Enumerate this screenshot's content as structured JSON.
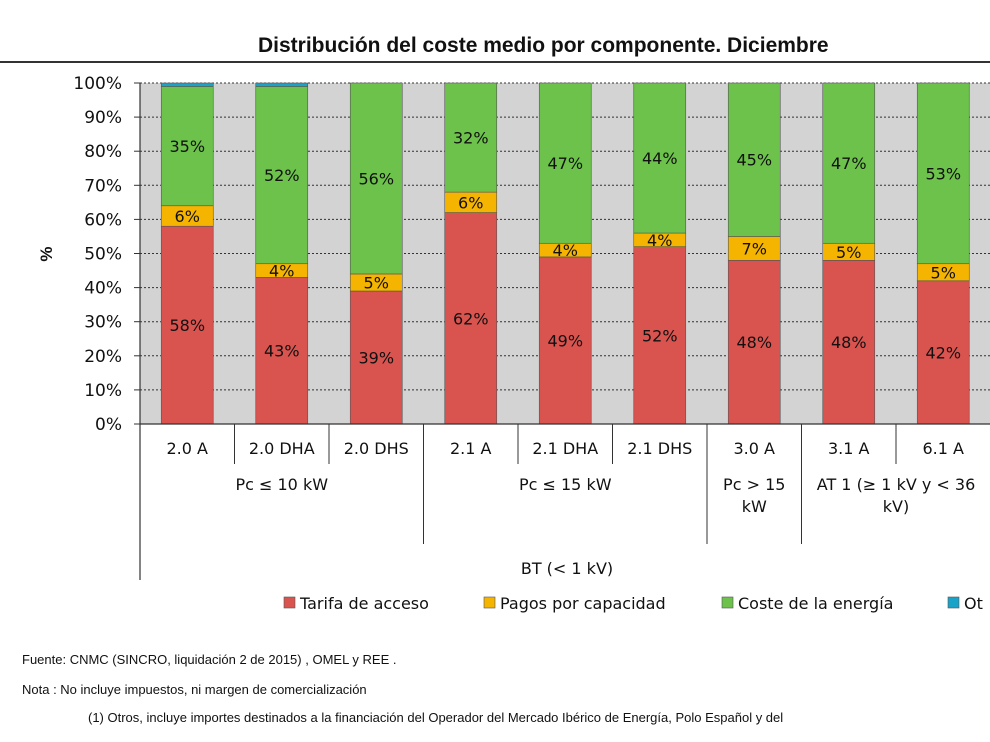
{
  "chart_data": {
    "type": "bar",
    "stacked": true,
    "title": "Distribución del coste medio por componente. Diciembre",
    "ylabel": "%",
    "ylim": [
      0,
      100
    ],
    "yticks": [
      "0%",
      "10%",
      "20%",
      "30%",
      "40%",
      "50%",
      "60%",
      "70%",
      "80%",
      "90%",
      "100%"
    ],
    "categories": [
      "2.0 A",
      "2.0 DHA",
      "2.0 DHS",
      "2.1 A",
      "2.1 DHA",
      "2.1 DHS",
      "3.0 A",
      "3.1 A",
      "6.1 A"
    ],
    "groups": [
      {
        "label": "Pc ≤ 10 kW",
        "lines": [
          "Pc ≤ 10 kW"
        ]
      },
      {
        "label": "Pc ≤ 15 kW",
        "lines": [
          "Pc ≤ 15 kW"
        ]
      },
      {
        "label": "Pc > 15 kW",
        "lines": [
          "Pc > 15",
          "kW"
        ]
      },
      {
        "label": "AT 1 (≥ 1 kV y < 36 kV)",
        "lines": [
          "AT 1 (≥  1 kV y  < 36",
          "kV)"
        ]
      }
    ],
    "supergroup": "BT (< 1 kV)",
    "series": [
      {
        "name": "Tarifa de acceso",
        "color": "#d9534f",
        "values": [
          58,
          43,
          39,
          62,
          49,
          52,
          48,
          48,
          42
        ],
        "labels": [
          "58%",
          "43%",
          "39%",
          "62%",
          "49%",
          "52%",
          "48%",
          "48%",
          "42%"
        ]
      },
      {
        "name": "Pagos por capacidad",
        "color": "#f5b400",
        "values": [
          6,
          4,
          5,
          6,
          4,
          4,
          7,
          5,
          5
        ],
        "labels": [
          "6%",
          "4%",
          "5%",
          "6%",
          "4%",
          "4%",
          "7%",
          "5%",
          "5%"
        ]
      },
      {
        "name": "Coste de la energía",
        "color": "#6cc24a",
        "values": [
          35,
          52,
          56,
          32,
          47,
          44,
          45,
          47,
          53
        ],
        "labels": [
          "35%",
          "52%",
          "56%",
          "32%",
          "47%",
          "44%",
          "45%",
          "47%",
          "53%"
        ]
      },
      {
        "name": "Ot",
        "color": "#1aa3c8",
        "values": [
          1,
          1,
          0,
          0,
          0,
          0,
          0,
          0,
          0
        ],
        "labels": []
      }
    ],
    "legend_position": "bottom"
  },
  "notes": {
    "source": "Fuente: CNMC (SINCRO, liquidación 2 de 2015) , OMEL y REE .",
    "nota": "Nota : No incluye impuestos, ni margen de comercialización",
    "footnote": "(1) Otros, incluye importes destinados a la financiación del Operador del Mercado Ibérico de Energía, Polo Español y del"
  }
}
